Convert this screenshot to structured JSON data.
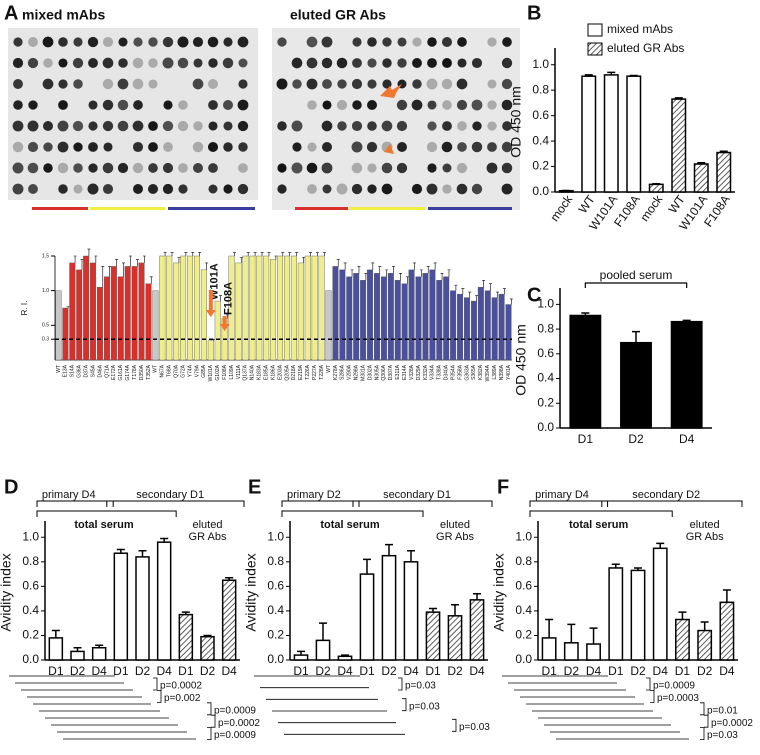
{
  "blots": [
    "mixed mAbs",
    "eluted GR Abs"
  ],
  "chart_data": [
    {
      "type": "bar",
      "panel": "A",
      "y_label": "R. I.",
      "categories": [
        "WT",
        "E13A",
        "S14A",
        "G36A",
        "D37A",
        "S45A",
        "D46A",
        "Q71A",
        "E172A",
        "G161A",
        "G174A",
        "T178A",
        "D350A",
        "T352A",
        "WT",
        "N67A",
        "T68A",
        "Q70A",
        "G72A",
        "Y74A",
        "V79A",
        "G85A",
        "W101A",
        "G102A",
        "F108A",
        "L109A",
        "V111A",
        "Q137A",
        "N140A",
        "K183A",
        "E185A",
        "K186A",
        "E203A",
        "Q205A",
        "D218A",
        "E219A",
        "T226A",
        "P227A",
        "T228A",
        "WT",
        "K278A",
        "S286A",
        "V290A",
        "N298A",
        "M301A",
        "D302A",
        "N305A",
        "Q306A",
        "D307A",
        "E311A",
        "E314A",
        "V328A",
        "D329A",
        "K332A",
        "V334A",
        "T338A",
        "D340A",
        "P354A",
        "F358A",
        "G363A",
        "S365A",
        "K382A",
        "W394A",
        "L389A",
        "N398A",
        "Y401A"
      ],
      "series": [
        {
          "values": [
            1.0,
            0.75,
            1.4,
            1.3,
            1.5,
            1.4,
            1.05,
            1.2,
            1.35,
            1.2,
            1.35,
            1.35,
            1.4,
            1.1,
            1.0,
            1.5,
            1.5,
            1.4,
            1.5,
            1.5,
            1.5,
            1.3,
            0.28,
            0.85,
            0.6,
            1.5,
            1.4,
            1.5,
            1.5,
            1.5,
            1.5,
            1.45,
            1.5,
            1.5,
            1.5,
            1.4,
            1.5,
            1.5,
            1.5,
            1.0,
            1.35,
            1.3,
            1.2,
            1.25,
            1.15,
            1.3,
            1.25,
            1.2,
            1.25,
            1.15,
            1.1,
            1.3,
            1.2,
            1.25,
            1.3,
            1.15,
            1.2,
            1.0,
            0.95,
            0.9,
            0.85,
            1.05,
            1.0,
            0.9,
            0.95,
            0.8
          ],
          "errors": [
            0,
            0.02,
            0.1,
            0.15,
            0.1,
            0.1,
            0.3,
            0.15,
            0.1,
            0.2,
            0.15,
            0.1,
            0.1,
            0.1,
            0,
            0.05,
            0.05,
            0.08,
            0.05,
            0.05,
            0.05,
            0.1,
            0.02,
            0.08,
            0.05,
            0.05,
            0.08,
            0.05,
            0.05,
            0.05,
            0.05,
            0.05,
            0.05,
            0.05,
            0.05,
            0.08,
            0.05,
            0.05,
            0.05,
            0,
            0.1,
            0.1,
            0.1,
            0.1,
            0.1,
            0.1,
            0.1,
            0.1,
            0.1,
            0.1,
            0.1,
            0.1,
            0.1,
            0.1,
            0.1,
            0.1,
            0.1,
            0.08,
            0.08,
            0.08,
            0.08,
            0.1,
            0.1,
            0.08,
            0.08,
            0.08
          ],
          "colors": [
            "#c8c8c8",
            "#d9302c",
            "#d9302c",
            "#d9302c",
            "#d9302c",
            "#d9302c",
            "#d9302c",
            "#d9302c",
            "#d9302c",
            "#d9302c",
            "#d9302c",
            "#d9302c",
            "#d9302c",
            "#d9302c",
            "#c8c8c8",
            "#f0ee8a",
            "#f0ee8a",
            "#f0ee8a",
            "#f0ee8a",
            "#f0ee8a",
            "#f0ee8a",
            "#f0ee8a",
            "#f0ee8a",
            "#f0ee8a",
            "#f0ee8a",
            "#f0ee8a",
            "#f0ee8a",
            "#f0ee8a",
            "#f0ee8a",
            "#f0ee8a",
            "#f0ee8a",
            "#f0ee8a",
            "#f0ee8a",
            "#f0ee8a",
            "#f0ee8a",
            "#f0ee8a",
            "#f0ee8a",
            "#f0ee8a",
            "#f0ee8a",
            "#c8c8c8",
            "#4a4f9e",
            "#4a4f9e",
            "#4a4f9e",
            "#4a4f9e",
            "#4a4f9e",
            "#4a4f9e",
            "#4a4f9e",
            "#4a4f9e",
            "#4a4f9e",
            "#4a4f9e",
            "#4a4f9e",
            "#4a4f9e",
            "#4a4f9e",
            "#4a4f9e",
            "#4a4f9e",
            "#4a4f9e",
            "#4a4f9e",
            "#4a4f9e",
            "#4a4f9e",
            "#4a4f9e",
            "#4a4f9e",
            "#4a4f9e",
            "#4a4f9e",
            "#4a4f9e",
            "#4a4f9e",
            "#4a4f9e"
          ]
        }
      ],
      "ylim": [
        0,
        1.5
      ],
      "yticks": [
        0.3,
        0.5,
        {
          "value": 1,
          "label": "1.0"
        },
        1.5
      ],
      "threshold": 0.3,
      "annotations": [
        "W101A",
        "F108A"
      ]
    },
    {
      "type": "bar",
      "panel": "B",
      "y_label": "OD 450 nm",
      "categories": [
        "mock",
        "WT",
        "W101A",
        "F108A",
        "mock",
        "WT",
        "W101A",
        "F108A"
      ],
      "series": [
        {
          "name": "mixed mAbs",
          "color": "#ffffff",
          "values": [
            0.01,
            0.91,
            0.92,
            0.91,
            null,
            null,
            null,
            null
          ],
          "errors": [
            0.002,
            0.01,
            0.02,
            0.005,
            null,
            null,
            null,
            null
          ]
        },
        {
          "name": "eluted GR Abs",
          "color": "#ffffff",
          "pattern": "hatch",
          "values": [
            null,
            null,
            null,
            null,
            0.06,
            0.73,
            0.22,
            0.31
          ],
          "errors": [
            null,
            null,
            null,
            null,
            0.005,
            0.01,
            0.01,
            0.01
          ]
        }
      ],
      "ylim": [
        0,
        1.1
      ],
      "yticks": [
        {
          "value": 0,
          "label": "0.0"
        },
        0.2,
        0.4,
        0.6,
        0.8,
        {
          "value": 1,
          "label": "1.0"
        }
      ]
    },
    {
      "type": "bar",
      "panel": "C",
      "y_label": "OD 450 nm",
      "bracket_label": "pooled serum",
      "categories": [
        "D1",
        "D2",
        "D4"
      ],
      "series": [
        {
          "color": "#000000",
          "values": [
            0.91,
            0.69,
            0.86
          ],
          "errors": [
            0.02,
            0.09,
            0.01
          ]
        }
      ],
      "ylim": [
        0,
        1.1
      ],
      "yticks": [
        {
          "value": 0,
          "label": "0.0"
        },
        0.2,
        0.4,
        0.6,
        0.8,
        {
          "value": 1,
          "label": "1.0"
        }
      ]
    },
    {
      "type": "bar",
      "panel": "D",
      "y_label": "Avidity index",
      "groups": {
        "primary": "primary D4",
        "secondary": "secondary D1",
        "total": "total serum",
        "eluted": [
          "eluted",
          "GR Abs"
        ]
      },
      "categories": [
        "D1",
        "D2",
        "D4",
        "D1",
        "D2",
        "D4",
        "D1",
        "D2",
        "D4"
      ],
      "series": [
        {
          "color": "#ffffff",
          "values": [
            0.18,
            0.07,
            0.1,
            0.87,
            0.84,
            0.96,
            null,
            null,
            null
          ],
          "errors": [
            0.06,
            0.03,
            0.02,
            0.03,
            0.05,
            0.03,
            null,
            null,
            null
          ]
        },
        {
          "color": "#ffffff",
          "pattern": "hatch",
          "values": [
            null,
            null,
            null,
            null,
            null,
            null,
            0.37,
            0.19,
            0.65
          ],
          "errors": [
            null,
            null,
            null,
            null,
            null,
            null,
            0.02,
            0.01,
            0.02
          ]
        }
      ],
      "ylim": [
        0,
        1.1
      ],
      "yticks": [
        {
          "value": 0,
          "label": "0.0"
        },
        0.2,
        0.4,
        0.6,
        0.8,
        {
          "value": 1,
          "label": "1.0"
        }
      ],
      "p_values": [
        "p=0.0002",
        "p=0.002",
        "p=0.0009",
        "p=0.0002",
        "p=0.0009"
      ]
    },
    {
      "type": "bar",
      "panel": "E",
      "y_label": "Avidity index",
      "groups": {
        "primary": "primary D2",
        "secondary": "secondary D1",
        "total": "total serum",
        "eluted": [
          "eluted",
          "GR Abs"
        ]
      },
      "categories": [
        "D1",
        "D2",
        "D4",
        "D1",
        "D2",
        "D4",
        "D1",
        "D2",
        "D4"
      ],
      "series": [
        {
          "color": "#ffffff",
          "values": [
            0.04,
            0.16,
            0.03,
            0.7,
            0.85,
            0.8,
            null,
            null,
            null
          ],
          "errors": [
            0.03,
            0.14,
            0.01,
            0.12,
            0.09,
            0.09,
            null,
            null,
            null
          ]
        },
        {
          "color": "#ffffff",
          "pattern": "hatch",
          "values": [
            null,
            null,
            null,
            null,
            null,
            null,
            0.39,
            0.36,
            0.49
          ],
          "errors": [
            null,
            null,
            null,
            null,
            null,
            null,
            0.03,
            0.09,
            0.05
          ]
        }
      ],
      "ylim": [
        0,
        1.1
      ],
      "yticks": [
        {
          "value": 0,
          "label": "0.0"
        },
        0.2,
        0.4,
        0.6,
        0.8,
        {
          "value": 1,
          "label": "1.0"
        }
      ],
      "p_values": [
        "p=0.03",
        "p=0.03",
        "p=0.03"
      ]
    },
    {
      "type": "bar",
      "panel": "F",
      "y_label": "Avidity index",
      "groups": {
        "primary": "primary D4",
        "secondary": "secondary D2",
        "total": "total serum",
        "eluted": [
          "eluted",
          "GR Abs"
        ]
      },
      "categories": [
        "D1",
        "D2",
        "D4",
        "D1",
        "D2",
        "D4",
        "D1",
        "D2",
        "D4"
      ],
      "series": [
        {
          "color": "#ffffff",
          "values": [
            0.18,
            0.14,
            0.13,
            0.75,
            0.73,
            0.91,
            null,
            null,
            null
          ],
          "errors": [
            0.15,
            0.15,
            0.13,
            0.03,
            0.02,
            0.04,
            null,
            null,
            null
          ]
        },
        {
          "color": "#ffffff",
          "pattern": "hatch",
          "values": [
            null,
            null,
            null,
            null,
            null,
            null,
            0.33,
            0.24,
            0.47
          ],
          "errors": [
            null,
            null,
            null,
            null,
            null,
            null,
            0.06,
            0.07,
            0.1
          ]
        }
      ],
      "ylim": [
        0,
        1.1
      ],
      "yticks": [
        {
          "value": 0,
          "label": "0.0"
        },
        0.2,
        0.4,
        0.6,
        0.8,
        {
          "value": 1,
          "label": "1.0"
        }
      ],
      "p_values": [
        "p=0.0009",
        "p=0.0003",
        "p=0.01",
        "p=0.0002",
        "p=0.03"
      ]
    }
  ]
}
